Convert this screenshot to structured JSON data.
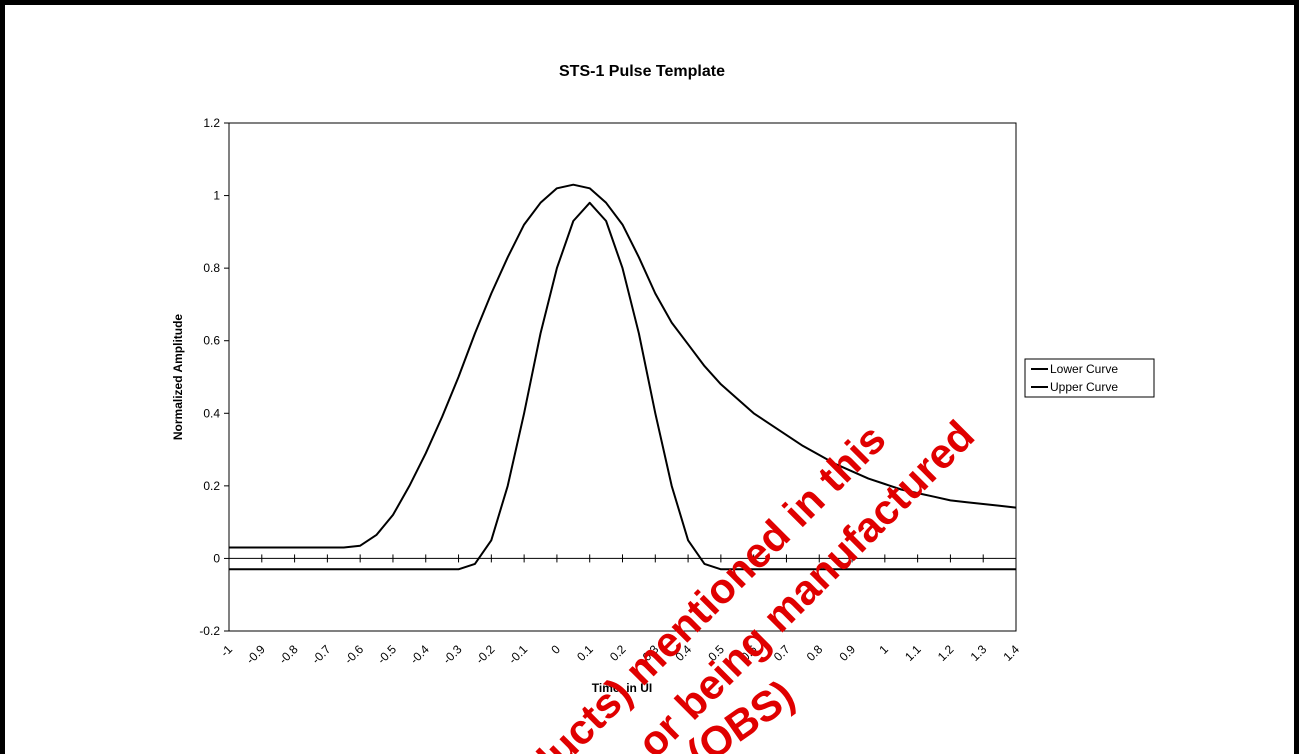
{
  "chart_data": {
    "type": "line",
    "title": "STS-1 Pulse Template",
    "xlabel": "Time, in UI",
    "ylabel": "Normalized Amplitude",
    "xlim": [
      -1,
      1.4
    ],
    "ylim": [
      -0.2,
      1.2
    ],
    "x_ticks": [
      "-1",
      "-0.9",
      "-0.8",
      "-0.7",
      "-0.6",
      "-0.5",
      "-0.4",
      "-0.3",
      "-0.2",
      "-0.1",
      "0",
      "0.1",
      "0.2",
      "0.3",
      "0.4",
      "0.5",
      "0.6",
      "0.7",
      "0.8",
      "0.9",
      "1",
      "1.1",
      "1.2",
      "1.3",
      "1.4"
    ],
    "y_ticks": [
      "-0.2",
      "0",
      "0.2",
      "0.4",
      "0.6",
      "0.8",
      "1",
      "1.2"
    ],
    "grid": false,
    "legend_position": "right",
    "series": [
      {
        "name": "Lower Curve",
        "x": [
          -1,
          -0.95,
          -0.9,
          -0.85,
          -0.8,
          -0.75,
          -0.7,
          -0.65,
          -0.6,
          -0.55,
          -0.5,
          -0.45,
          -0.4,
          -0.35,
          -0.3,
          -0.25,
          -0.2,
          -0.15,
          -0.1,
          -0.05,
          0,
          0.05,
          0.1,
          0.15,
          0.2,
          0.25,
          0.3,
          0.35,
          0.4,
          0.45,
          0.5,
          0.55,
          0.6,
          0.65,
          0.7,
          0.75,
          0.8,
          0.85,
          0.9,
          0.95,
          1,
          1.05,
          1.1,
          1.15,
          1.2,
          1.25,
          1.3,
          1.35,
          1.4
        ],
        "y": [
          -0.03,
          -0.03,
          -0.03,
          -0.03,
          -0.03,
          -0.03,
          -0.03,
          -0.03,
          -0.03,
          -0.03,
          -0.03,
          -0.03,
          -0.03,
          -0.03,
          -0.03,
          -0.015,
          0.05,
          0.2,
          0.4,
          0.62,
          0.8,
          0.93,
          0.98,
          0.93,
          0.8,
          0.62,
          0.4,
          0.2,
          0.05,
          -0.015,
          -0.03,
          -0.03,
          -0.03,
          -0.03,
          -0.03,
          -0.03,
          -0.03,
          -0.03,
          -0.03,
          -0.03,
          -0.03,
          -0.03,
          -0.03,
          -0.03,
          -0.03,
          -0.03,
          -0.03,
          -0.03,
          -0.03
        ]
      },
      {
        "name": "Upper Curve",
        "x": [
          -1,
          -0.95,
          -0.9,
          -0.85,
          -0.8,
          -0.75,
          -0.7,
          -0.65,
          -0.6,
          -0.55,
          -0.5,
          -0.45,
          -0.4,
          -0.35,
          -0.3,
          -0.25,
          -0.2,
          -0.15,
          -0.1,
          -0.05,
          0,
          0.05,
          0.1,
          0.15,
          0.2,
          0.25,
          0.3,
          0.35,
          0.4,
          0.45,
          0.5,
          0.55,
          0.6,
          0.65,
          0.7,
          0.75,
          0.8,
          0.85,
          0.9,
          0.95,
          1,
          1.05,
          1.1,
          1.15,
          1.2,
          1.25,
          1.3,
          1.35,
          1.4
        ],
        "y": [
          0.03,
          0.03,
          0.03,
          0.03,
          0.03,
          0.03,
          0.03,
          0.03,
          0.035,
          0.065,
          0.12,
          0.2,
          0.29,
          0.39,
          0.5,
          0.62,
          0.73,
          0.83,
          0.92,
          0.98,
          1.02,
          1.03,
          1.02,
          0.98,
          0.92,
          0.83,
          0.73,
          0.65,
          0.59,
          0.53,
          0.48,
          0.44,
          0.4,
          0.37,
          0.34,
          0.31,
          0.285,
          0.26,
          0.24,
          0.22,
          0.205,
          0.19,
          0.18,
          0.17,
          0.16,
          0.155,
          0.15,
          0.145,
          0.14
        ]
      }
    ]
  },
  "watermark": {
    "lines": [
      "ducts) mentioned in this",
      "or being manufactured",
      "(OBS)"
    ],
    "color": "#e00000"
  }
}
